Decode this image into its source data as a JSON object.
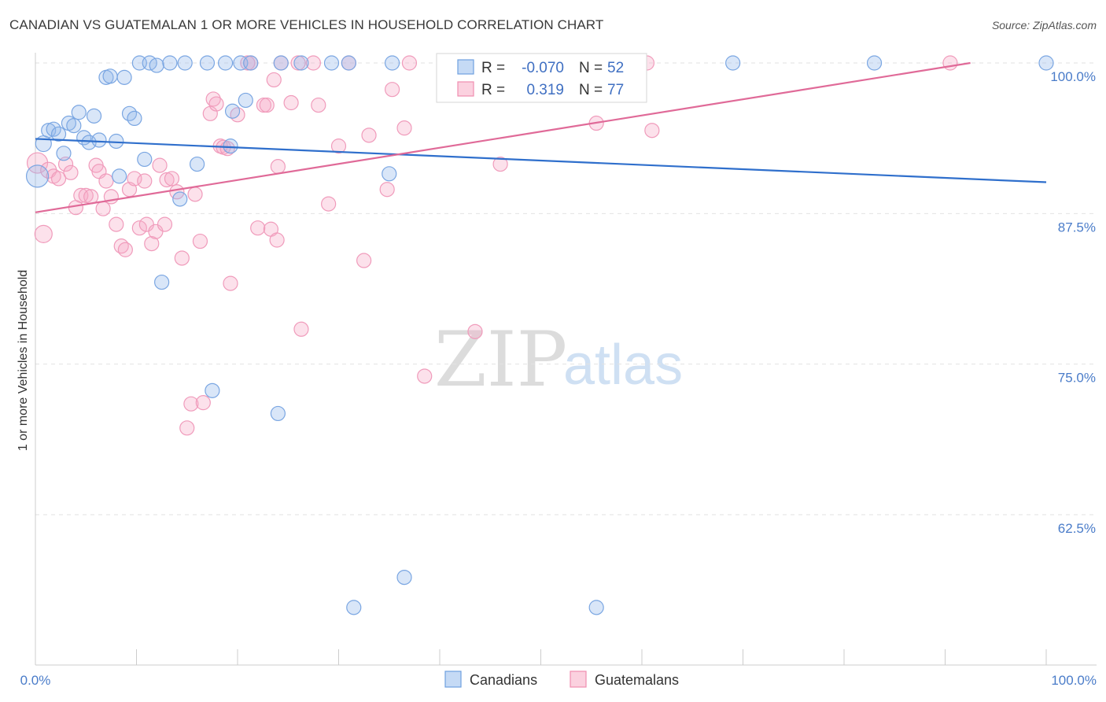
{
  "header": {
    "title": "CANADIAN VS GUATEMALAN 1 OR MORE VEHICLES IN HOUSEHOLD CORRELATION CHART",
    "source": "Source: ZipAtlas.com"
  },
  "watermark": {
    "zip": "ZIP",
    "atlas": "atlas"
  },
  "legend": {
    "rows": [
      {
        "r_label": "R = ",
        "r_value": "-0.070",
        "n_label": "N = ",
        "n_value": "52"
      },
      {
        "r_label": "R = ",
        "r_value": "0.319",
        "n_label": "N = ",
        "n_value": "77"
      }
    ]
  },
  "chart_data": {
    "type": "scatter",
    "title": "CANADIAN VS GUATEMALAN 1 OR MORE VEHICLES IN HOUSEHOLD CORRELATION CHART",
    "xlabel": "",
    "ylabel": "1 or more Vehicles in Household",
    "xlim": [
      0,
      100
    ],
    "ylim": [
      51.5,
      101
    ],
    "x_tick_labels": [
      "0.0%",
      "100.0%"
    ],
    "y_ticks": [
      100,
      87.5,
      75,
      62.5
    ],
    "y_tick_labels": [
      "100.0%",
      "87.5%",
      "75.0%",
      "62.5%"
    ],
    "grid": true,
    "legend_position": "top-center",
    "colors": {
      "Canadians": "#6fa0e0",
      "Guatemalans": "#f08eb0",
      "Canadians_line": "#2f6fcc",
      "Guatemalans_line": "#e06a98"
    },
    "series": [
      {
        "name": "Canadians",
        "r": -0.07,
        "n": 52,
        "trend": [
          [
            0,
            93.7
          ],
          [
            100,
            90.1
          ]
        ],
        "points": [
          [
            0.2,
            90.6,
            14
          ],
          [
            0.8,
            93.3,
            10
          ],
          [
            1.3,
            94.4,
            9
          ],
          [
            1.8,
            94.5,
            9
          ],
          [
            2.3,
            94.1,
            9
          ],
          [
            2.8,
            92.5,
            9
          ],
          [
            3.3,
            95.0,
            9
          ],
          [
            3.8,
            94.8,
            9
          ],
          [
            4.3,
            95.9,
            9
          ],
          [
            4.8,
            93.8,
            9
          ],
          [
            5.3,
            93.4,
            9
          ],
          [
            5.8,
            95.6,
            9
          ],
          [
            6.3,
            93.6,
            9
          ],
          [
            7.0,
            98.8,
            9
          ],
          [
            7.4,
            98.9,
            9
          ],
          [
            8.0,
            93.5,
            9
          ],
          [
            8.3,
            90.6,
            9
          ],
          [
            8.8,
            98.8,
            9
          ],
          [
            9.3,
            95.8,
            9
          ],
          [
            9.8,
            95.4,
            9
          ],
          [
            10.3,
            100.0,
            9
          ],
          [
            10.8,
            92.0,
            9
          ],
          [
            11.3,
            100.0,
            9
          ],
          [
            12.0,
            99.8,
            9
          ],
          [
            12.5,
            81.8,
            9
          ],
          [
            13.3,
            100.0,
            9
          ],
          [
            14.3,
            88.7,
            9
          ],
          [
            14.8,
            100.0,
            9
          ],
          [
            16.0,
            91.6,
            9
          ],
          [
            17.0,
            100.0,
            9
          ],
          [
            17.5,
            72.8,
            9
          ],
          [
            18.8,
            100.0,
            9
          ],
          [
            19.3,
            93.1,
            9
          ],
          [
            19.5,
            96.0,
            9
          ],
          [
            20.3,
            100.0,
            9
          ],
          [
            20.8,
            96.9,
            9
          ],
          [
            21.3,
            100.0,
            9
          ],
          [
            24.0,
            70.9,
            9
          ],
          [
            24.3,
            100.0,
            9
          ],
          [
            26.3,
            100.0,
            9
          ],
          [
            29.3,
            100.0,
            9
          ],
          [
            31.0,
            100.0,
            9
          ],
          [
            31.5,
            54.8,
            9
          ],
          [
            35.0,
            90.8,
            9
          ],
          [
            35.3,
            100.0,
            9
          ],
          [
            36.5,
            57.3,
            9
          ],
          [
            40.5,
            100.0,
            9
          ],
          [
            47.5,
            100.0,
            9
          ],
          [
            55.5,
            54.8,
            9
          ],
          [
            69.0,
            100.0,
            9
          ],
          [
            83.0,
            100.0,
            9
          ],
          [
            100.0,
            100.0,
            9
          ]
        ]
      },
      {
        "name": "Guatemalans",
        "r": 0.319,
        "n": 77,
        "trend": [
          [
            0,
            87.6
          ],
          [
            92.5,
            100.0
          ]
        ],
        "points": [
          [
            0.2,
            91.7,
            13
          ],
          [
            0.8,
            85.8,
            11
          ],
          [
            1.3,
            91.1,
            10
          ],
          [
            1.8,
            90.6,
            9
          ],
          [
            2.3,
            90.4,
            9
          ],
          [
            3.0,
            91.6,
            9
          ],
          [
            3.5,
            90.9,
            9
          ],
          [
            4.0,
            88.0,
            9
          ],
          [
            4.5,
            89.0,
            9
          ],
          [
            5.0,
            89.0,
            9
          ],
          [
            5.5,
            88.9,
            9
          ],
          [
            6.0,
            91.5,
            9
          ],
          [
            6.3,
            91.0,
            9
          ],
          [
            6.7,
            87.9,
            9
          ],
          [
            7.0,
            90.2,
            9
          ],
          [
            7.5,
            88.9,
            9
          ],
          [
            8.0,
            86.6,
            9
          ],
          [
            8.5,
            84.8,
            9
          ],
          [
            8.9,
            84.5,
            9
          ],
          [
            9.3,
            89.5,
            9
          ],
          [
            9.8,
            90.4,
            9
          ],
          [
            10.3,
            86.3,
            9
          ],
          [
            10.8,
            90.2,
            9
          ],
          [
            11.0,
            86.6,
            9
          ],
          [
            11.5,
            85.0,
            9
          ],
          [
            11.9,
            86.0,
            9
          ],
          [
            12.3,
            91.5,
            9
          ],
          [
            12.8,
            86.6,
            9
          ],
          [
            13.0,
            90.3,
            9
          ],
          [
            13.5,
            90.4,
            9
          ],
          [
            14.0,
            89.3,
            9
          ],
          [
            14.5,
            83.8,
            9
          ],
          [
            15.0,
            69.7,
            9
          ],
          [
            15.4,
            71.7,
            9
          ],
          [
            15.8,
            89.1,
            9
          ],
          [
            16.3,
            85.2,
            9
          ],
          [
            16.6,
            71.8,
            9
          ],
          [
            17.3,
            95.8,
            9
          ],
          [
            17.6,
            97.0,
            9
          ],
          [
            17.9,
            96.6,
            9
          ],
          [
            18.3,
            93.1,
            9
          ],
          [
            18.6,
            93.0,
            9
          ],
          [
            19.0,
            92.9,
            9
          ],
          [
            19.3,
            81.7,
            9
          ],
          [
            20.0,
            95.7,
            9
          ],
          [
            21.0,
            100.0,
            9
          ],
          [
            21.3,
            100.0,
            9
          ],
          [
            22.0,
            86.3,
            9
          ],
          [
            22.6,
            96.5,
            9
          ],
          [
            22.9,
            96.5,
            9
          ],
          [
            23.3,
            86.2,
            9
          ],
          [
            23.6,
            98.6,
            9
          ],
          [
            23.9,
            85.3,
            9
          ],
          [
            24.0,
            91.4,
            9
          ],
          [
            24.3,
            100.0,
            9
          ],
          [
            25.3,
            96.7,
            9
          ],
          [
            26.0,
            100.0,
            9
          ],
          [
            26.3,
            77.9,
            9
          ],
          [
            27.5,
            100.0,
            9
          ],
          [
            28.0,
            96.5,
            9
          ],
          [
            29.0,
            88.3,
            9
          ],
          [
            30.0,
            93.1,
            9
          ],
          [
            31.0,
            100.0,
            9
          ],
          [
            32.5,
            83.6,
            9
          ],
          [
            33.0,
            94.0,
            9
          ],
          [
            34.8,
            89.5,
            9
          ],
          [
            35.3,
            97.8,
            9
          ],
          [
            36.5,
            94.6,
            9
          ],
          [
            37.0,
            100.0,
            9
          ],
          [
            38.5,
            74.0,
            9
          ],
          [
            43.0,
            100.0,
            9
          ],
          [
            43.5,
            77.7,
            9
          ],
          [
            46.0,
            91.6,
            9
          ],
          [
            55.5,
            95.0,
            9
          ],
          [
            60.5,
            100.0,
            9
          ],
          [
            61.0,
            94.4,
            9
          ],
          [
            90.5,
            100.0,
            9
          ]
        ]
      }
    ]
  },
  "bottom_legend": {
    "items": [
      {
        "label": "Canadians"
      },
      {
        "label": "Guatemalans"
      }
    ]
  }
}
